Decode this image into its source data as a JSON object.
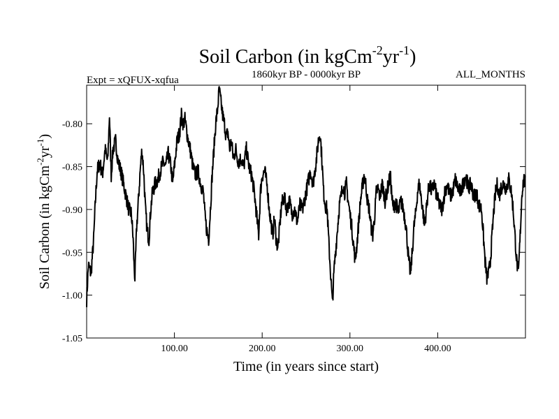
{
  "chart_data": {
    "type": "line",
    "title": {
      "prefix": "Soil Carbon (in kgCm",
      "sup1": "-2",
      "mid": "yr",
      "sup2": "-1",
      "suffix": ")"
    },
    "subtitle_left": "Expt = xQFUX-xqfua",
    "subtitle_center": "1860kyr BP - 0000kyr BP",
    "subtitle_right": "ALL_MONTHS",
    "xlabel": "Time (in years since start)",
    "ylabel": {
      "prefix": "Soil Carbon (in kgCm",
      "sup1": "-2",
      "mid": "yr",
      "sup2": "-1",
      "suffix": ")"
    },
    "xlim": [
      0,
      500
    ],
    "ylim": [
      -1.05,
      -0.755
    ],
    "xticks": [
      100,
      200,
      300,
      400
    ],
    "xtick_labels": [
      "100.00",
      "200.00",
      "300.00",
      "400.00"
    ],
    "yticks": [
      -1.05,
      -1.0,
      -0.95,
      -0.9,
      -0.85,
      -0.8
    ],
    "ytick_labels": [
      "-1.05",
      "-1.00",
      "-0.95",
      "-0.90",
      "-0.85",
      "-0.80"
    ],
    "grid": false,
    "series": [
      {
        "name": "Soil Carbon",
        "anchors": [
          [
            0,
            -1.005
          ],
          [
            2,
            -0.965
          ],
          [
            5,
            -0.975
          ],
          [
            8,
            -0.935
          ],
          [
            10,
            -0.89
          ],
          [
            12,
            -0.855
          ],
          [
            15,
            -0.845
          ],
          [
            18,
            -0.86
          ],
          [
            21,
            -0.83
          ],
          [
            24,
            -0.845
          ],
          [
            26,
            -0.79
          ],
          [
            28,
            -0.86
          ],
          [
            30,
            -0.83
          ],
          [
            33,
            -0.82
          ],
          [
            36,
            -0.845
          ],
          [
            39,
            -0.855
          ],
          [
            42,
            -0.87
          ],
          [
            45,
            -0.885
          ],
          [
            48,
            -0.9
          ],
          [
            51,
            -0.905
          ],
          [
            53,
            -0.935
          ],
          [
            54,
            -0.965
          ],
          [
            55,
            -0.98
          ],
          [
            57,
            -0.92
          ],
          [
            59,
            -0.89
          ],
          [
            61,
            -0.855
          ],
          [
            63,
            -0.83
          ],
          [
            65,
            -0.855
          ],
          [
            67,
            -0.9
          ],
          [
            69,
            -0.925
          ],
          [
            71,
            -0.935
          ],
          [
            73,
            -0.9
          ],
          [
            75,
            -0.88
          ],
          [
            78,
            -0.87
          ],
          [
            81,
            -0.865
          ],
          [
            84,
            -0.855
          ],
          [
            87,
            -0.845
          ],
          [
            90,
            -0.85
          ],
          [
            93,
            -0.835
          ],
          [
            96,
            -0.85
          ],
          [
            98,
            -0.87
          ],
          [
            100,
            -0.85
          ],
          [
            103,
            -0.82
          ],
          [
            106,
            -0.81
          ],
          [
            108,
            -0.79
          ],
          [
            110,
            -0.8
          ],
          [
            112,
            -0.795
          ],
          [
            115,
            -0.815
          ],
          [
            118,
            -0.83
          ],
          [
            121,
            -0.85
          ],
          [
            124,
            -0.86
          ],
          [
            127,
            -0.855
          ],
          [
            130,
            -0.87
          ],
          [
            133,
            -0.88
          ],
          [
            135,
            -0.91
          ],
          [
            137,
            -0.925
          ],
          [
            139,
            -0.935
          ],
          [
            141,
            -0.9
          ],
          [
            143,
            -0.86
          ],
          [
            145,
            -0.83
          ],
          [
            147,
            -0.8
          ],
          [
            149,
            -0.785
          ],
          [
            151,
            -0.76
          ],
          [
            153,
            -0.775
          ],
          [
            155,
            -0.79
          ],
          [
            157,
            -0.8
          ],
          [
            159,
            -0.815
          ],
          [
            161,
            -0.81
          ],
          [
            163,
            -0.83
          ],
          [
            165,
            -0.82
          ],
          [
            167,
            -0.84
          ],
          [
            170,
            -0.83
          ],
          [
            173,
            -0.845
          ],
          [
            176,
            -0.84
          ],
          [
            179,
            -0.85
          ],
          [
            182,
            -0.83
          ],
          [
            185,
            -0.85
          ],
          [
            188,
            -0.86
          ],
          [
            191,
            -0.88
          ],
          [
            194,
            -0.91
          ],
          [
            196,
            -0.93
          ],
          [
            198,
            -0.88
          ],
          [
            200,
            -0.86
          ],
          [
            203,
            -0.855
          ],
          [
            206,
            -0.875
          ],
          [
            208,
            -0.9
          ],
          [
            210,
            -0.915
          ],
          [
            212,
            -0.93
          ],
          [
            214,
            -0.91
          ],
          [
            216,
            -0.935
          ],
          [
            218,
            -0.945
          ],
          [
            220,
            -0.92
          ],
          [
            222,
            -0.895
          ],
          [
            225,
            -0.885
          ],
          [
            228,
            -0.9
          ],
          [
            231,
            -0.89
          ],
          [
            234,
            -0.905
          ],
          [
            237,
            -0.9
          ],
          [
            240,
            -0.915
          ],
          [
            243,
            -0.895
          ],
          [
            246,
            -0.9
          ],
          [
            249,
            -0.885
          ],
          [
            252,
            -0.87
          ],
          [
            255,
            -0.855
          ],
          [
            258,
            -0.87
          ],
          [
            260,
            -0.855
          ],
          [
            262,
            -0.84
          ],
          [
            264,
            -0.82
          ],
          [
            266,
            -0.81
          ],
          [
            268,
            -0.84
          ],
          [
            270,
            -0.88
          ],
          [
            272,
            -0.895
          ],
          [
            274,
            -0.9
          ],
          [
            276,
            -0.94
          ],
          [
            278,
            -0.975
          ],
          [
            280,
            -1.01
          ],
          [
            282,
            -0.97
          ],
          [
            284,
            -0.945
          ],
          [
            286,
            -0.92
          ],
          [
            288,
            -0.895
          ],
          [
            290,
            -0.885
          ],
          [
            292,
            -0.87
          ],
          [
            294,
            -0.88
          ],
          [
            296,
            -0.87
          ],
          [
            298,
            -0.89
          ],
          [
            300,
            -0.905
          ],
          [
            302,
            -0.92
          ],
          [
            304,
            -0.94
          ],
          [
            306,
            -0.96
          ],
          [
            308,
            -0.94
          ],
          [
            310,
            -0.915
          ],
          [
            312,
            -0.89
          ],
          [
            314,
            -0.875
          ],
          [
            316,
            -0.86
          ],
          [
            318,
            -0.87
          ],
          [
            320,
            -0.89
          ],
          [
            322,
            -0.9
          ],
          [
            324,
            -0.92
          ],
          [
            326,
            -0.93
          ],
          [
            328,
            -0.91
          ],
          [
            330,
            -0.88
          ],
          [
            332,
            -0.875
          ],
          [
            334,
            -0.885
          ],
          [
            337,
            -0.87
          ],
          [
            340,
            -0.89
          ],
          [
            343,
            -0.875
          ],
          [
            346,
            -0.86
          ],
          [
            349,
            -0.9
          ],
          [
            352,
            -0.89
          ],
          [
            355,
            -0.905
          ],
          [
            358,
            -0.89
          ],
          [
            361,
            -0.9
          ],
          [
            364,
            -0.92
          ],
          [
            367,
            -0.96
          ],
          [
            369,
            -0.975
          ],
          [
            371,
            -0.95
          ],
          [
            373,
            -0.92
          ],
          [
            375,
            -0.905
          ],
          [
            377,
            -0.88
          ],
          [
            379,
            -0.87
          ],
          [
            381,
            -0.885
          ],
          [
            383,
            -0.9
          ],
          [
            385,
            -0.92
          ],
          [
            387,
            -0.9
          ],
          [
            389,
            -0.88
          ],
          [
            391,
            -0.87
          ],
          [
            393,
            -0.88
          ],
          [
            396,
            -0.87
          ],
          [
            399,
            -0.885
          ],
          [
            402,
            -0.895
          ],
          [
            405,
            -0.9
          ],
          [
            408,
            -0.88
          ],
          [
            411,
            -0.87
          ],
          [
            414,
            -0.885
          ],
          [
            417,
            -0.88
          ],
          [
            420,
            -0.865
          ],
          [
            423,
            -0.875
          ],
          [
            426,
            -0.88
          ],
          [
            429,
            -0.87
          ],
          [
            432,
            -0.86
          ],
          [
            435,
            -0.875
          ],
          [
            438,
            -0.87
          ],
          [
            441,
            -0.885
          ],
          [
            444,
            -0.88
          ],
          [
            447,
            -0.895
          ],
          [
            450,
            -0.9
          ],
          [
            452,
            -0.93
          ],
          [
            454,
            -0.96
          ],
          [
            456,
            -0.98
          ],
          [
            458,
            -0.975
          ],
          [
            460,
            -0.96
          ],
          [
            462,
            -0.93
          ],
          [
            464,
            -0.9
          ],
          [
            466,
            -0.88
          ],
          [
            468,
            -0.87
          ],
          [
            470,
            -0.885
          ],
          [
            472,
            -0.875
          ],
          [
            475,
            -0.87
          ],
          [
            478,
            -0.875
          ],
          [
            481,
            -0.865
          ],
          [
            484,
            -0.88
          ],
          [
            486,
            -0.9
          ],
          [
            488,
            -0.93
          ],
          [
            490,
            -0.96
          ],
          [
            492,
            -0.975
          ],
          [
            494,
            -0.93
          ],
          [
            496,
            -0.88
          ],
          [
            498,
            -0.865
          ],
          [
            500,
            -0.87
          ]
        ],
        "samples_per_year": 3,
        "noise_amplitude": 0.009,
        "noise_seed": 7,
        "color": "#000000"
      }
    ]
  }
}
